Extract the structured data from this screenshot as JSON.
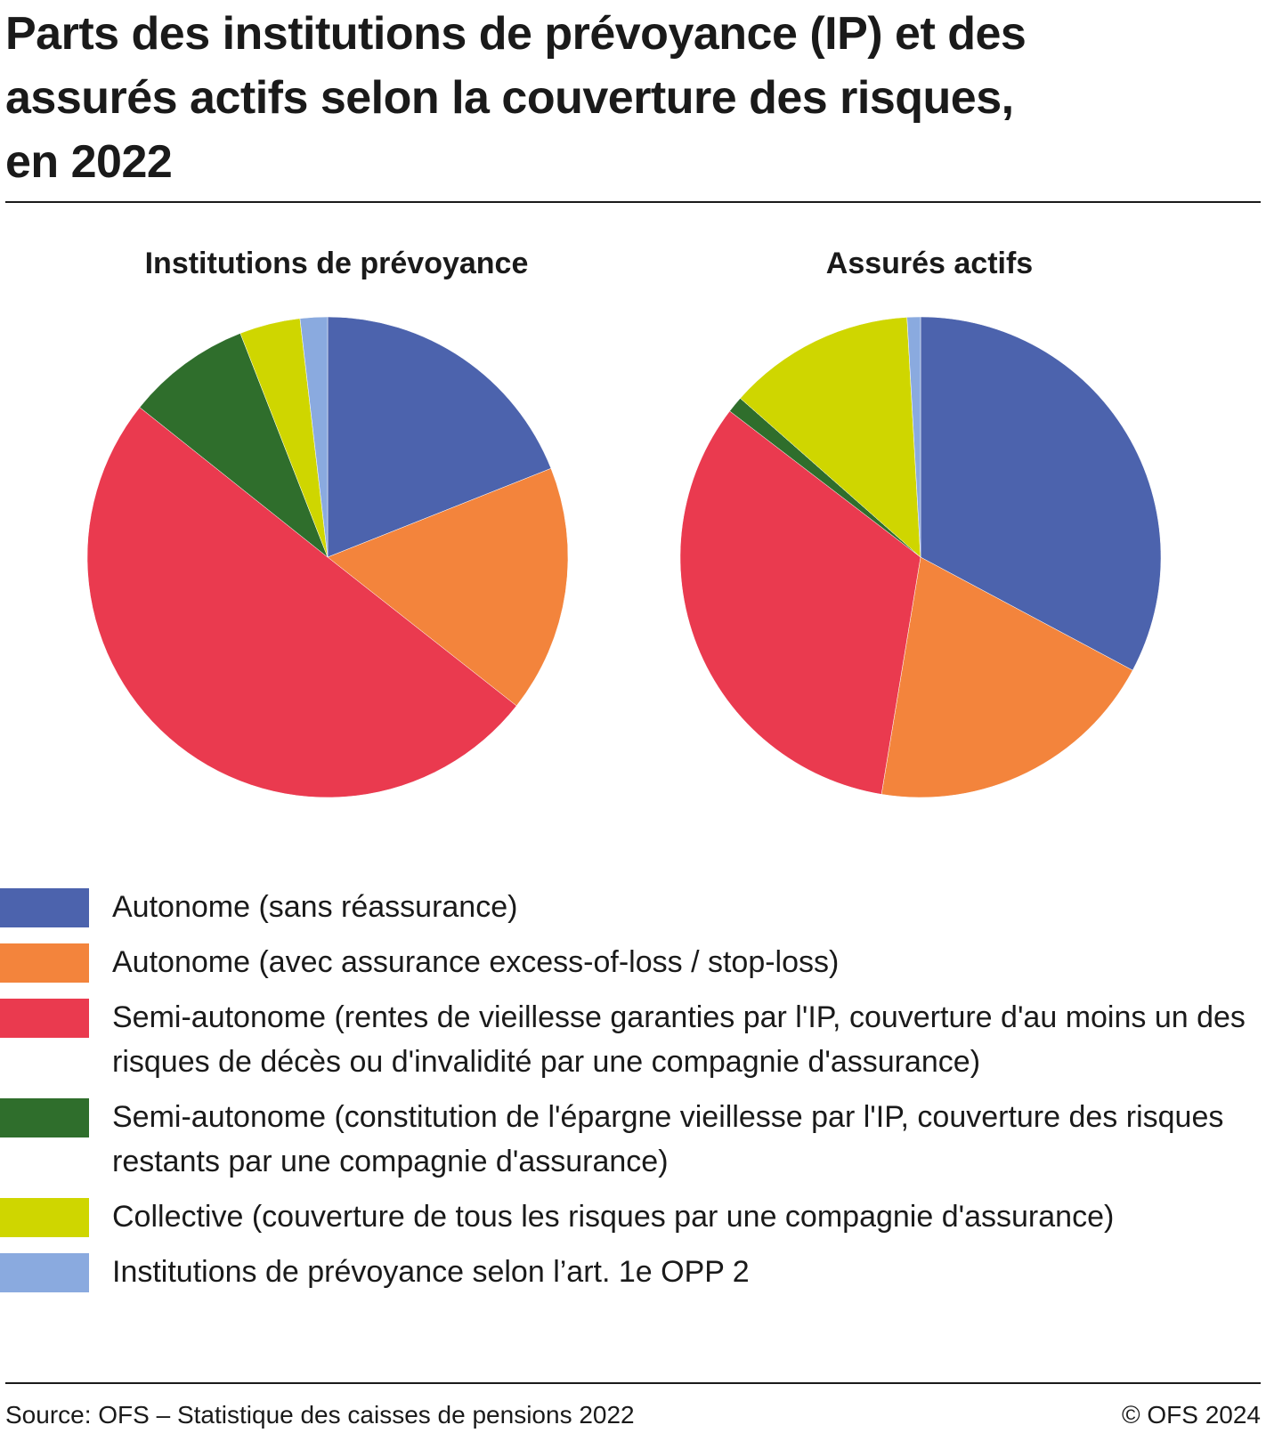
{
  "title": "Parts des institutions de prévoyance (IP) et des assurés actifs selon la couverture des risques, en 2022",
  "source": "Source: OFS – Statistique des caisses de pensions 2022",
  "copyright": "© OFS 2024",
  "chart_data": [
    {
      "type": "pie",
      "title": "Institutions de prévoyance",
      "categories": [
        "Autonome (sans réassurance)",
        "Autonome (avec assurance excess-of-loss / stop-loss)",
        "Semi-autonome (rentes de vieillesse garanties par l'IP, couverture d'au moins un des risques de décès ou d'invalidité par une compagnie d'assurance)",
        "Semi-autonome (constitution de l'épargne vieillesse par l'IP, couverture des risques restants par une compagnie d'assurance)",
        "Collective (couverture de tous les risques par une compagnie d'assurance)",
        "Institutions de prévoyance selon l’art. 1e OPP 2"
      ],
      "values": [
        18.6,
        16.3,
        49.1,
        8.2,
        4.0,
        1.8
      ],
      "colors": [
        "#4c63ad",
        "#f3843c",
        "#ea3a4f",
        "#2f6e2c",
        "#cfd600",
        "#8aaadf"
      ]
    },
    {
      "type": "pie",
      "title": "Assurés actifs",
      "categories": [
        "Autonome (sans réassurance)",
        "Autonome (avec assurance excess-of-loss / stop-loss)",
        "Semi-autonome (rentes de vieillesse garanties par l'IP, couverture d'au moins un des risques de décès ou d'invalidité par une compagnie d'assurance)",
        "Semi-autonome (constitution de l'épargne vieillesse par l'IP, couverture des risques restants par une compagnie d'assurance)",
        "Collective (couverture de tous les risques par une compagnie d'assurance)",
        "Institutions de prévoyance selon l’art. 1e OPP 2"
      ],
      "values": [
        32.8,
        19.8,
        32.8,
        1.1,
        12.6,
        0.9
      ],
      "colors": [
        "#4c63ad",
        "#f3843c",
        "#ea3a4f",
        "#2f6e2c",
        "#cfd600",
        "#8aaadf"
      ]
    }
  ],
  "legend": [
    {
      "label": "Autonome (sans réassurance)",
      "color": "#4c63ad"
    },
    {
      "label": "Autonome (avec assurance excess-of-loss / stop-loss)",
      "color": "#f3843c"
    },
    {
      "label": "Semi-autonome (rentes de vieillesse garanties par l'IP, couverture d'au moins un des risques de décès ou d'invalidité par une compagnie d'assurance)",
      "color": "#ea3a4f"
    },
    {
      "label": "Semi-autonome (constitution de l'épargne vieillesse par l'IP, couverture des risques restants par une compagnie d'assurance)",
      "color": "#2f6e2c"
    },
    {
      "label": "Collective (couverture de tous les risques par une compagnie d'assurance)",
      "color": "#cfd600"
    },
    {
      "label": "Institutions de prévoyance selon l’art. 1e OPP 2",
      "color": "#8aaadf"
    }
  ]
}
